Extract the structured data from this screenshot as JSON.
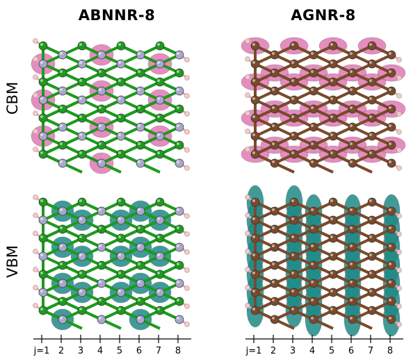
{
  "titles": {
    "left": "ABNNR-8",
    "right": "AGNR-8"
  },
  "row_labels": {
    "top": "CBM",
    "bottom": "VBM"
  },
  "axis": {
    "first_label": "j=1",
    "labels": [
      "j=1",
      "2",
      "3",
      "4",
      "5",
      "6",
      "7",
      "8"
    ]
  },
  "colors": {
    "boron": "#1e9a1e",
    "nitrogen": "#a8a8cc",
    "carbon": "#7a4a2c",
    "hydrogen": "#f3c9c9",
    "cbm_orbital": "#e079b4",
    "vbm_orbital": "#1f8a86"
  }
}
